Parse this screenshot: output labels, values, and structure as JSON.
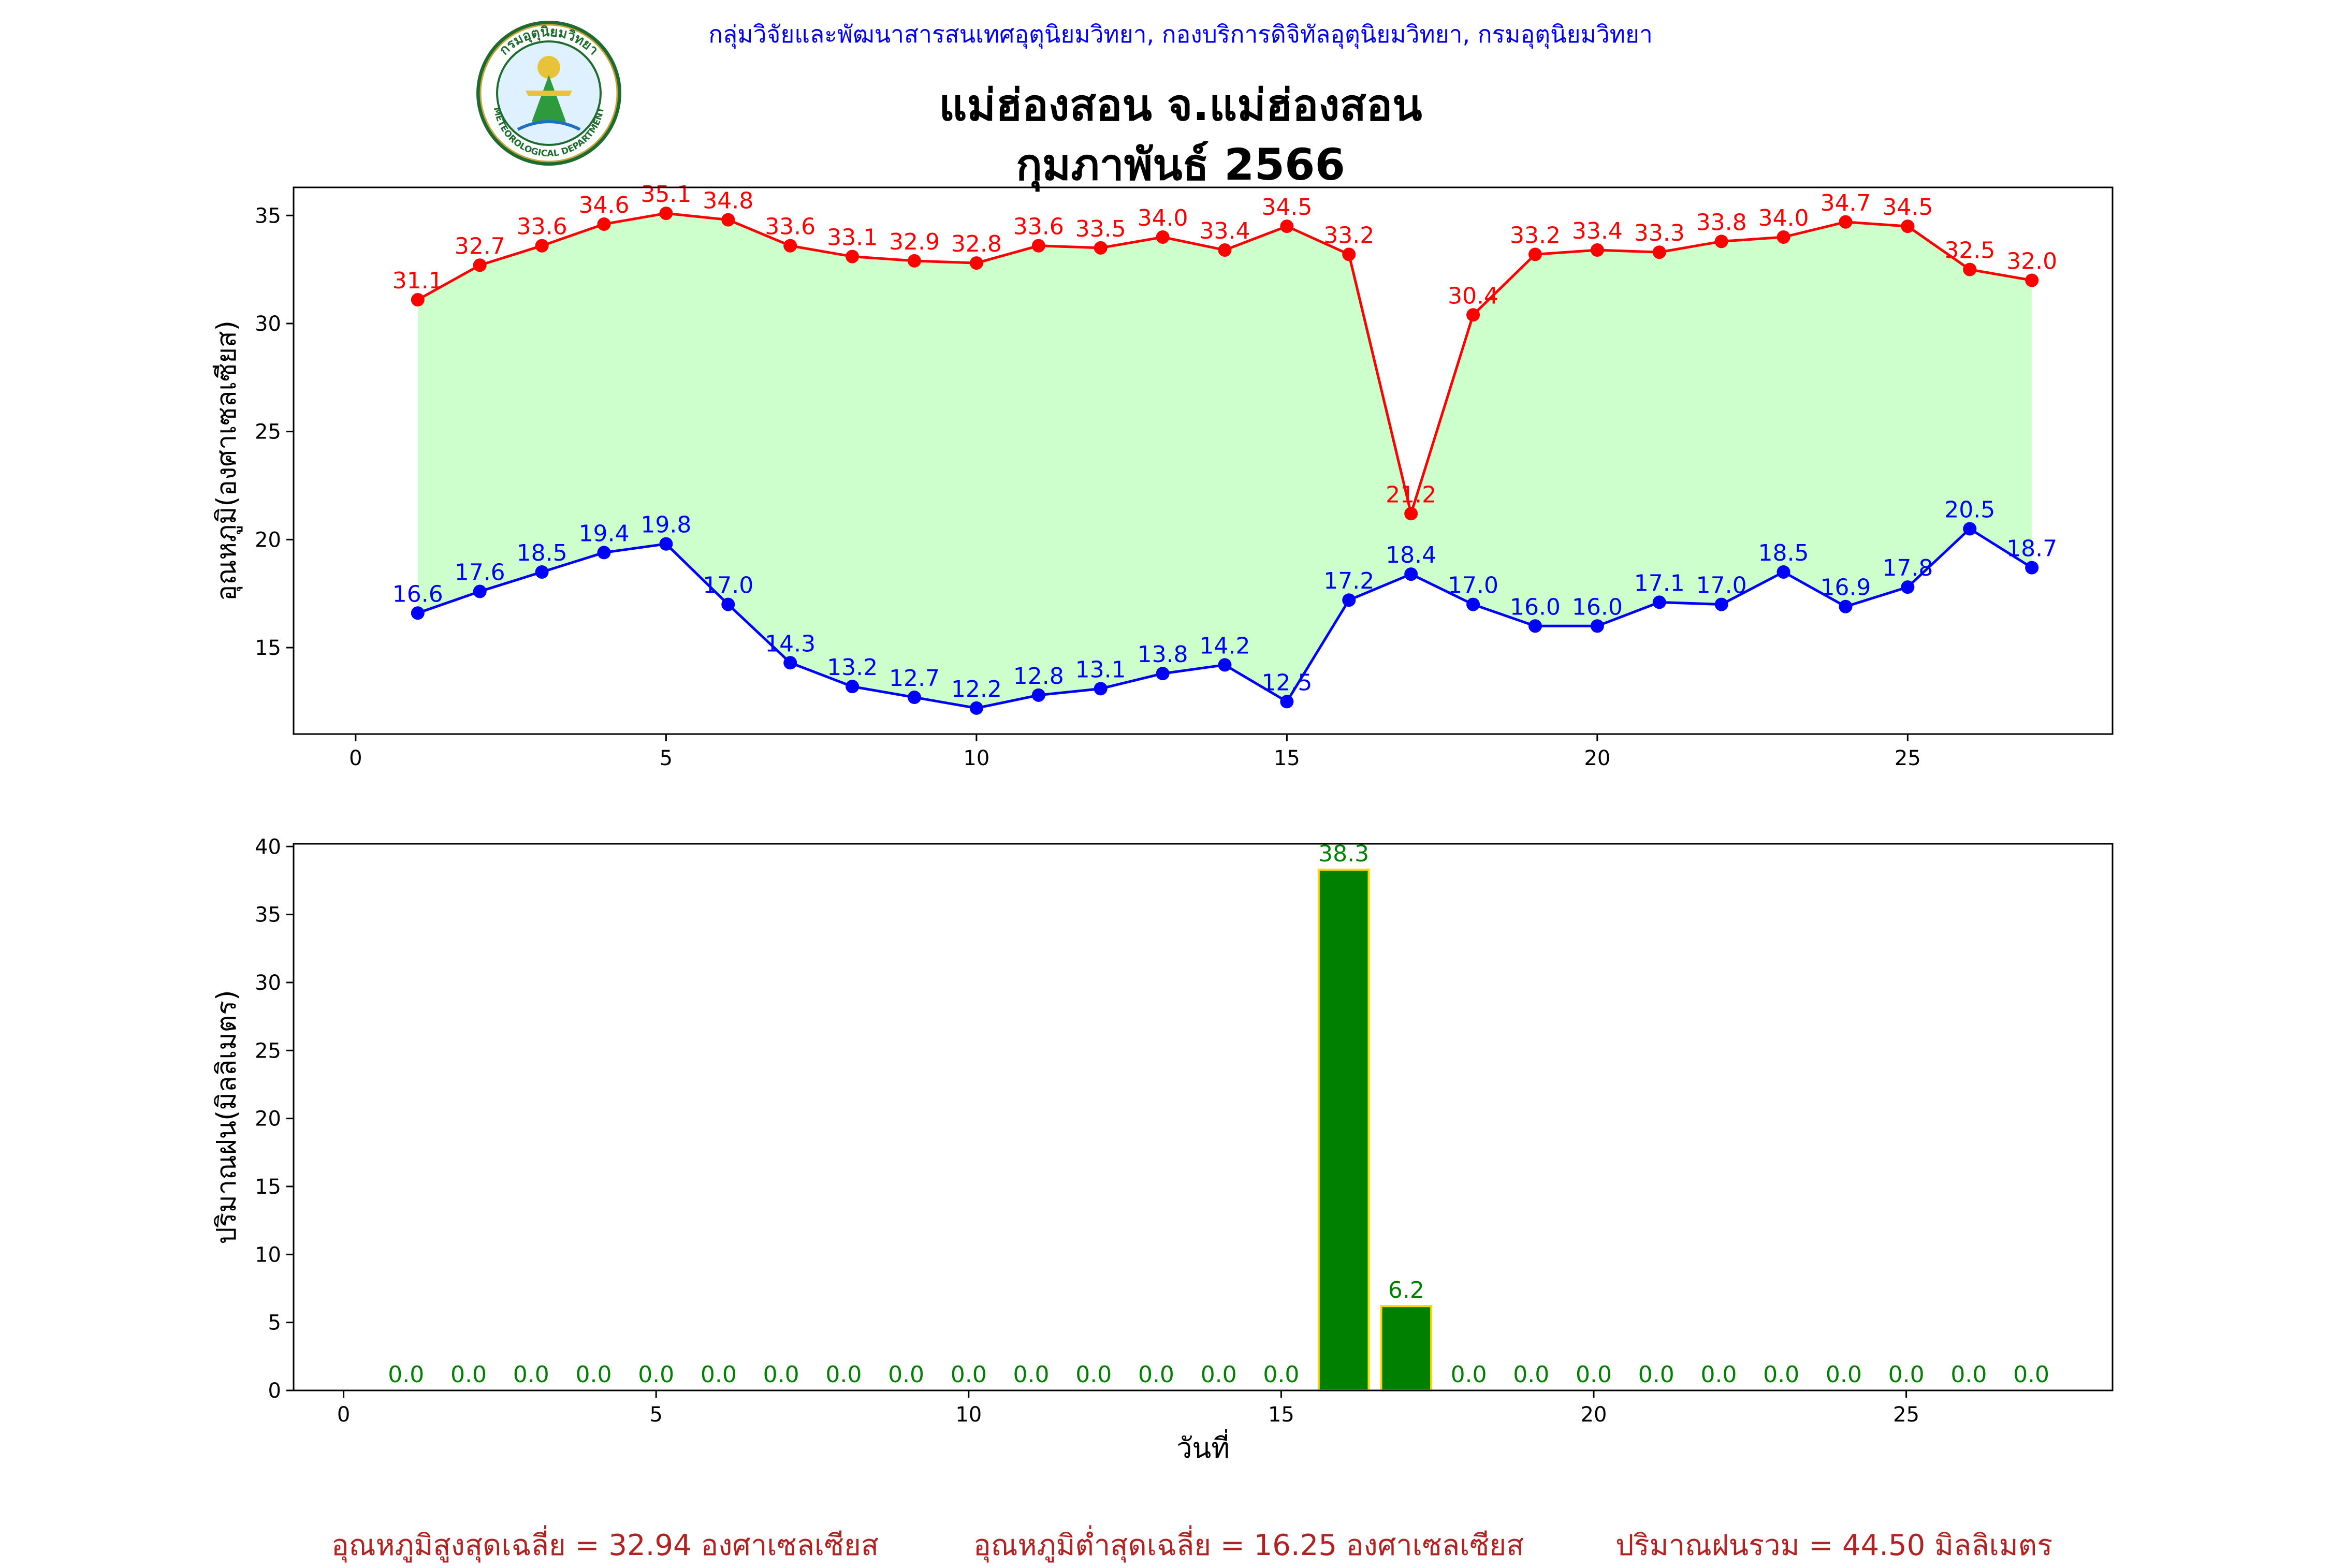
{
  "header": {
    "agency": "กลุ่มวิจัยและพัฒนาสารสนเทศอุตุนิยมวิทยา, กองบริการดิจิทัลอุตุนิยมวิทยา, กรมอุตุนิยมวิทยา",
    "station": "แม่ฮ่องสอน จ.แม่ฮ่องสอน",
    "month": "กุมภาพันธ์ 2566",
    "logo_top_text": "กรมอุตุนิยมวิทยา",
    "logo_bottom_text": "METEOROLOGICAL DEPARTMENT"
  },
  "chart_data": [
    {
      "type": "line",
      "ylabel": "อุณหภูมิ(องศาเซลเซียส)",
      "xlim": [
        -1.0,
        28.3
      ],
      "ylim": [
        11.0,
        36.3
      ],
      "xticks": [
        0,
        5,
        10,
        15,
        20,
        25
      ],
      "yticks": [
        15,
        20,
        25,
        30,
        35
      ],
      "x": [
        1,
        2,
        3,
        4,
        5,
        6,
        7,
        8,
        9,
        10,
        11,
        12,
        13,
        14,
        15,
        16,
        17,
        18,
        19,
        20,
        21,
        22,
        23,
        24,
        25,
        26,
        27
      ],
      "series": [
        {
          "color": "#ff0000",
          "values": [
            31.1,
            32.7,
            33.6,
            34.6,
            35.1,
            34.8,
            33.6,
            33.1,
            32.9,
            32.8,
            33.6,
            33.5,
            34.0,
            33.4,
            34.5,
            33.2,
            21.2,
            30.4,
            33.2,
            33.4,
            33.3,
            33.8,
            34.0,
            34.7,
            34.5,
            32.5,
            32.0
          ]
        },
        {
          "color": "#0000ff",
          "values": [
            16.6,
            17.6,
            18.5,
            19.4,
            19.8,
            17.0,
            14.3,
            13.2,
            12.7,
            12.2,
            12.8,
            13.1,
            13.8,
            14.2,
            12.5,
            17.2,
            18.4,
            17.0,
            16.0,
            16.0,
            17.1,
            17.0,
            18.5,
            16.9,
            17.8,
            20.5,
            18.7
          ]
        }
      ],
      "fill_color": "#ccffcc"
    },
    {
      "type": "bar",
      "xlabel": "วันที่",
      "ylabel": "ปริมาณฝน(มิลลิเมตร)",
      "xlim": [
        -0.8,
        28.3
      ],
      "ylim": [
        0,
        40.2
      ],
      "xticks": [
        0,
        5,
        10,
        15,
        20,
        25
      ],
      "yticks": [
        0,
        5,
        10,
        15,
        20,
        25,
        30,
        35,
        40
      ],
      "x": [
        1,
        2,
        3,
        4,
        5,
        6,
        7,
        8,
        9,
        10,
        11,
        12,
        13,
        14,
        15,
        16,
        17,
        18,
        19,
        20,
        21,
        22,
        23,
        24,
        25,
        26,
        27
      ],
      "values": [
        0.0,
        0.0,
        0.0,
        0.0,
        0.0,
        0.0,
        0.0,
        0.0,
        0.0,
        0.0,
        0.0,
        0.0,
        0.0,
        0.0,
        0.0,
        38.3,
        6.2,
        0.0,
        0.0,
        0.0,
        0.0,
        0.0,
        0.0,
        0.0,
        0.0,
        0.0,
        0.0
      ],
      "bar_color": "#008000",
      "edge_color": "#ffd700",
      "label_color": "#008000"
    }
  ],
  "footer": {
    "avg_max": "อุณหภูมิสูงสุดเฉลี่ย = 32.94 องศาเซลเซียส",
    "avg_min": "อุณหภูมิต่ำสุดเฉลี่ย = 16.25 องศาเซลเซียส",
    "total_rain": "ปริมาณฝนรวม = 44.50 มิลลิเมตร"
  }
}
